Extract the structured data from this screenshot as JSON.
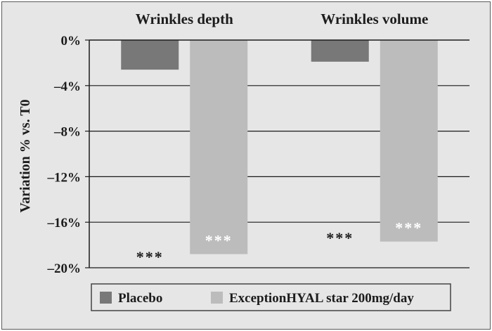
{
  "chart_data": {
    "type": "bar",
    "categories": [
      "Wrinkles depth",
      "Wrinkles volume"
    ],
    "series": [
      {
        "name": "Placebo",
        "values": [
          -2.6,
          -1.9
        ],
        "color": "#787878",
        "significance": [
          "***",
          "***"
        ]
      },
      {
        "name": "ExceptionHYAL star 200mg/day",
        "values": [
          -18.8,
          -17.7
        ],
        "color": "#bcbcbc",
        "significance": [
          "***",
          "***"
        ]
      }
    ],
    "ylabel": "Variation % vs. T0",
    "ylim": [
      -20,
      0
    ],
    "yticks": [
      0,
      -4,
      -8,
      -12,
      -16,
      -20
    ],
    "ytick_labels": [
      "0%",
      "–4%",
      "–8%",
      "–12%",
      "–16%",
      "–20%"
    ],
    "grid": true,
    "category_labels_position": "top",
    "legend_position": "bottom",
    "background": "#e6e6e6"
  }
}
